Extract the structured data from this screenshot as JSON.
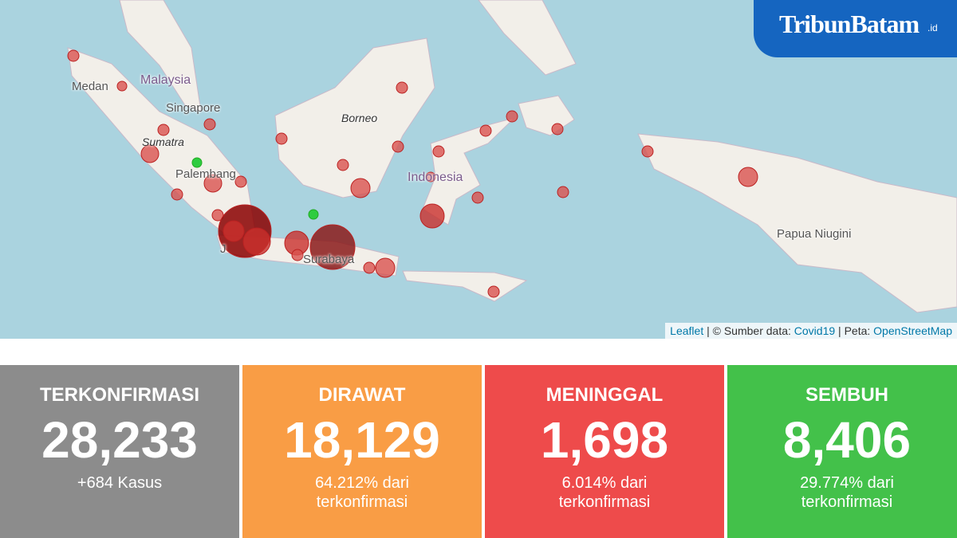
{
  "logo": {
    "name": "TribunBatam",
    "suffix": ".id"
  },
  "map": {
    "labels": [
      "Medan",
      "Malaysia",
      "Singapore",
      "Sumatra",
      "Palembang",
      "Borneo",
      "Indonesia",
      "Papua Niugini",
      "Surabaya",
      "J"
    ],
    "attribution": {
      "leaflet": "Leaflet",
      "source_prefix": "| © Sumber data:",
      "source": "Covid19",
      "map_prefix": "| Peta:",
      "map": "OpenStreetMap"
    }
  },
  "cards": [
    {
      "title": "TERKONFIRMASI",
      "value": "28,233",
      "note": "+684 Kasus"
    },
    {
      "title": "DIRAWAT",
      "value": "18,129",
      "note": "64.212% dari terkonfirmasi"
    },
    {
      "title": "MENINGGAL",
      "value": "1,698",
      "note": "6.014% dari terkonfirmasi"
    },
    {
      "title": "SEMBUH",
      "value": "8,406",
      "note": "29.774% dari terkonfirmasi"
    }
  ]
}
